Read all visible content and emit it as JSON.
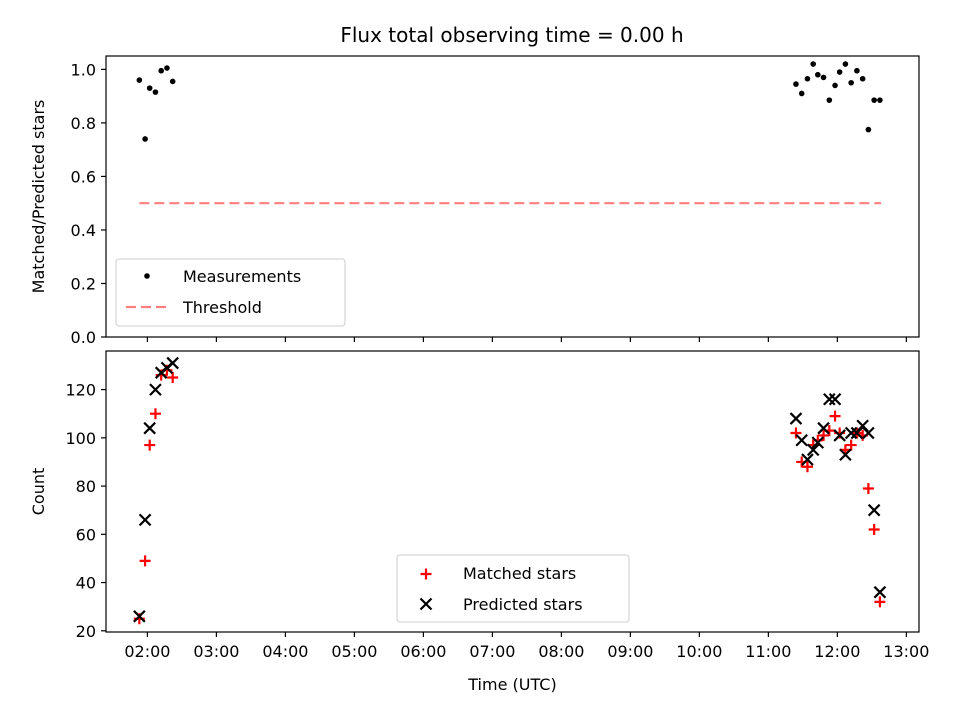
{
  "figure": {
    "title": "Flux total observing time = 0.00 h"
  },
  "chart_data": [
    {
      "type": "scatter",
      "panel": "top",
      "xlabel": "",
      "ylabel": "Matched/Predicted stars",
      "x_unit": "hours UTC",
      "xlim": [
        "01:24",
        "13:11"
      ],
      "ylim": [
        0,
        1.05
      ],
      "yticks": [
        0.0,
        0.2,
        0.4,
        0.6,
        0.8,
        1.0
      ],
      "ytick_labels": [
        "0.0",
        "0.2",
        "0.4",
        "0.6",
        "0.8",
        "1.0"
      ],
      "legend": {
        "placement": "lower-left"
      },
      "series": [
        {
          "name": "Measurements",
          "kind": "point",
          "color": "#000000",
          "points": [
            {
              "x": "01:53",
              "y": 0.96
            },
            {
              "x": "01:58",
              "y": 0.74
            },
            {
              "x": "02:02",
              "y": 0.93
            },
            {
              "x": "02:07",
              "y": 0.915
            },
            {
              "x": "02:12",
              "y": 0.995
            },
            {
              "x": "02:17",
              "y": 1.005
            },
            {
              "x": "02:22",
              "y": 0.955
            },
            {
              "x": "11:24",
              "y": 0.945
            },
            {
              "x": "11:29",
              "y": 0.91
            },
            {
              "x": "11:34",
              "y": 0.965
            },
            {
              "x": "11:39",
              "y": 1.02
            },
            {
              "x": "11:43",
              "y": 0.98
            },
            {
              "x": "11:48",
              "y": 0.97
            },
            {
              "x": "11:53",
              "y": 0.885
            },
            {
              "x": "11:58",
              "y": 0.94
            },
            {
              "x": "12:02",
              "y": 0.99
            },
            {
              "x": "12:07",
              "y": 1.02
            },
            {
              "x": "12:12",
              "y": 0.95
            },
            {
              "x": "12:17",
              "y": 0.995
            },
            {
              "x": "12:22",
              "y": 0.965
            },
            {
              "x": "12:27",
              "y": 0.775
            },
            {
              "x": "12:32",
              "y": 0.885
            },
            {
              "x": "12:37",
              "y": 0.885
            }
          ]
        },
        {
          "name": "Threshold",
          "kind": "dashed-line",
          "color": "#ff7f7f",
          "points": [
            {
              "x": "01:53",
              "y": 0.5
            },
            {
              "x": "12:38",
              "y": 0.5
            }
          ]
        }
      ]
    },
    {
      "type": "scatter",
      "panel": "bottom",
      "xlabel": "Time (UTC)",
      "ylabel": "Count",
      "x_unit": "hours UTC",
      "xlim": [
        "01:24",
        "13:11"
      ],
      "ylim": [
        19.5,
        136
      ],
      "yticks": [
        20,
        40,
        60,
        80,
        100,
        120
      ],
      "ytick_labels": [
        "20",
        "40",
        "60",
        "80",
        "100",
        "120"
      ],
      "xticks": [
        "02:00",
        "03:00",
        "04:00",
        "05:00",
        "06:00",
        "07:00",
        "08:00",
        "09:00",
        "10:00",
        "11:00",
        "12:00",
        "13:00"
      ],
      "xtick_labels": [
        "02:00",
        "03:00",
        "04:00",
        "05:00",
        "06:00",
        "07:00",
        "08:00",
        "09:00",
        "10:00",
        "11:00",
        "12:00",
        "13:00"
      ],
      "legend": {
        "placement": "lower-center"
      },
      "series": [
        {
          "name": "Matched stars",
          "marker": "plus",
          "color": "#ff0000",
          "points": [
            {
              "x": "01:53",
              "y": 25
            },
            {
              "x": "01:58",
              "y": 49
            },
            {
              "x": "02:02",
              "y": 97
            },
            {
              "x": "02:07",
              "y": 110
            },
            {
              "x": "02:12",
              "y": 126
            },
            {
              "x": "02:17",
              "y": 128
            },
            {
              "x": "02:22",
              "y": 125
            },
            {
              "x": "11:24",
              "y": 102
            },
            {
              "x": "11:29",
              "y": 90
            },
            {
              "x": "11:34",
              "y": 88
            },
            {
              "x": "11:39",
              "y": 97
            },
            {
              "x": "11:43",
              "y": 99
            },
            {
              "x": "11:48",
              "y": 101
            },
            {
              "x": "11:53",
              "y": 103
            },
            {
              "x": "11:58",
              "y": 109
            },
            {
              "x": "12:02",
              "y": 102
            },
            {
              "x": "12:07",
              "y": 95
            },
            {
              "x": "12:12",
              "y": 97
            },
            {
              "x": "12:17",
              "y": 102
            },
            {
              "x": "12:22",
              "y": 101
            },
            {
              "x": "12:27",
              "y": 79
            },
            {
              "x": "12:32",
              "y": 62
            },
            {
              "x": "12:37",
              "y": 32
            }
          ]
        },
        {
          "name": "Predicted stars",
          "marker": "x",
          "color": "#000000",
          "points": [
            {
              "x": "01:53",
              "y": 26
            },
            {
              "x": "01:58",
              "y": 66
            },
            {
              "x": "02:02",
              "y": 104
            },
            {
              "x": "02:07",
              "y": 120
            },
            {
              "x": "02:12",
              "y": 127
            },
            {
              "x": "02:17",
              "y": 129
            },
            {
              "x": "02:22",
              "y": 131
            },
            {
              "x": "11:24",
              "y": 108
            },
            {
              "x": "11:29",
              "y": 99
            },
            {
              "x": "11:34",
              "y": 91
            },
            {
              "x": "11:39",
              "y": 95
            },
            {
              "x": "11:43",
              "y": 98
            },
            {
              "x": "11:48",
              "y": 104
            },
            {
              "x": "11:53",
              "y": 116
            },
            {
              "x": "11:58",
              "y": 116
            },
            {
              "x": "12:02",
              "y": 101
            },
            {
              "x": "12:07",
              "y": 93
            },
            {
              "x": "12:12",
              "y": 102
            },
            {
              "x": "12:17",
              "y": 102
            },
            {
              "x": "12:22",
              "y": 105
            },
            {
              "x": "12:27",
              "y": 102
            },
            {
              "x": "12:32",
              "y": 70
            },
            {
              "x": "12:37",
              "y": 36
            }
          ]
        }
      ]
    }
  ]
}
